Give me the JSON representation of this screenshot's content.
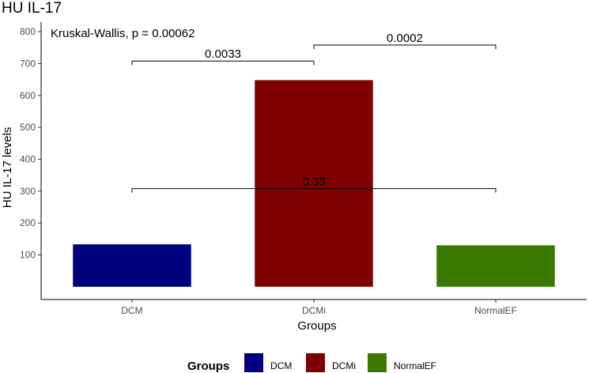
{
  "chart_data": {
    "type": "bar",
    "title": "HU IL-17",
    "subtitle": "Kruskal-Wallis, p = 0.00062",
    "xlabel": "Groups",
    "ylabel": "HU IL-17 levels",
    "categories": [
      "DCM",
      "DCMi",
      "NormalEF"
    ],
    "values": [
      133,
      648,
      130
    ],
    "colors": [
      "#00007f",
      "#7f0000",
      "#3a7a00"
    ],
    "ylim": [
      -40,
      830
    ],
    "yticks": [
      100,
      200,
      300,
      400,
      500,
      600,
      700,
      800
    ],
    "grid": false,
    "legend": {
      "title": "Groups",
      "position": "bottom",
      "entries": [
        "DCM",
        "DCMi",
        "NormalEF"
      ]
    },
    "comparisons": [
      {
        "from": "DCM",
        "to": "DCMi",
        "label": "0.0033",
        "y": 708
      },
      {
        "from": "DCMi",
        "to": "NormalEF",
        "label": "0.0002",
        "y": 758
      },
      {
        "from": "DCM",
        "to": "NormalEF",
        "label": "0.33",
        "y": 308
      }
    ]
  }
}
